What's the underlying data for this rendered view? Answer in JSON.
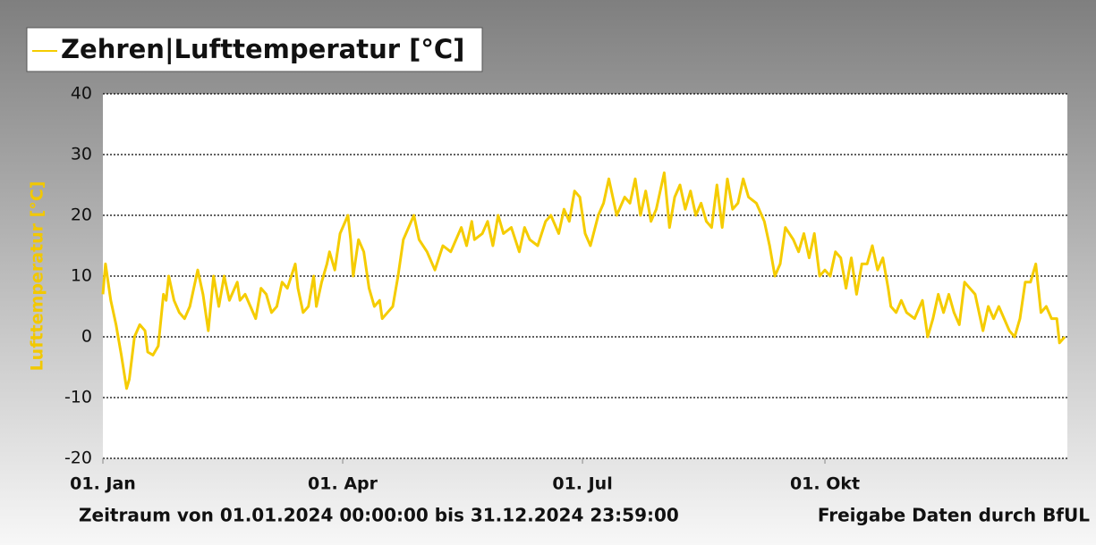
{
  "chart_data": {
    "type": "line",
    "y_label": "Lufttemperatur [°C]",
    "footer_left": "Zeitraum von 01.01.2024 00:00:00 bis 31.12.2024 23:59:00",
    "footer_right": "Freigabe Daten durch BfUL",
    "x": [
      0,
      1,
      3,
      5,
      7,
      9,
      10,
      12,
      14,
      16,
      17,
      19,
      21,
      23,
      24,
      25,
      27,
      29,
      31,
      33,
      36,
      38,
      40,
      42,
      44,
      46,
      48,
      49,
      51,
      52,
      54,
      56,
      58,
      60,
      62,
      64,
      66,
      68,
      70,
      73,
      74,
      76,
      78,
      80,
      81,
      83,
      85,
      86,
      88,
      90,
      93,
      94,
      95,
      97,
      99,
      101,
      103,
      105,
      106,
      108,
      110,
      112,
      114,
      116,
      118,
      120,
      123,
      126,
      129,
      132,
      136,
      138,
      140,
      141,
      144,
      146,
      148,
      150,
      152,
      155,
      158,
      160,
      162,
      165,
      168,
      170,
      173,
      175,
      177,
      179,
      181,
      183,
      185,
      188,
      190,
      192,
      195,
      198,
      200,
      202,
      204,
      206,
      208,
      210,
      213,
      215,
      217,
      219,
      221,
      223,
      225,
      227,
      229,
      231,
      233,
      235,
      237,
      239,
      241,
      243,
      245,
      248,
      251,
      253,
      255,
      257,
      259,
      262,
      264,
      266,
      268,
      270,
      272,
      274,
      276,
      278,
      280,
      282,
      284,
      286,
      288,
      290,
      292,
      294,
      296,
      298,
      299,
      301,
      303,
      305,
      308,
      311,
      313,
      315,
      317,
      319,
      321,
      323,
      325,
      327,
      329,
      331,
      334,
      336,
      338,
      340,
      342,
      344,
      346,
      348,
      350,
      351,
      352,
      354,
      356,
      358,
      360,
      362,
      363,
      365
    ],
    "series": [
      {
        "name": "Zehren|Lufttemperatur [°C]",
        "color": "#f5cc00",
        "values": [
          7,
          12,
          6,
          2,
          -3,
          -8.5,
          -7,
          0,
          2,
          1,
          -2.5,
          -3,
          -1.5,
          7,
          6,
          10,
          6,
          4,
          3,
          5,
          11,
          7,
          1,
          10,
          5,
          10,
          6,
          7,
          9,
          6,
          7,
          5,
          3,
          8,
          7,
          4,
          5,
          9,
          8,
          12,
          8,
          4,
          5,
          10,
          5,
          9,
          12,
          14,
          11,
          17,
          20,
          16,
          10,
          16,
          14,
          8,
          5,
          6,
          3,
          4,
          5,
          10,
          16,
          18,
          20,
          16,
          14,
          11,
          15,
          14,
          18,
          15,
          19,
          16,
          17,
          19,
          15,
          20,
          17,
          18,
          14,
          18,
          16,
          15,
          19,
          20,
          17,
          21,
          19,
          24,
          23,
          17,
          15,
          20,
          22,
          26,
          20,
          23,
          22,
          26,
          20,
          24,
          19,
          21,
          27,
          18,
          23,
          25,
          21,
          24,
          20,
          22,
          19,
          18,
          25,
          18,
          26,
          21,
          22,
          26,
          23,
          22,
          19,
          15,
          10,
          12,
          18,
          16,
          14,
          17,
          13,
          17,
          10,
          11,
          10,
          14,
          13,
          8,
          13,
          7,
          12,
          12,
          15,
          11,
          13,
          8,
          5,
          4,
          6,
          4,
          3,
          6,
          0,
          3,
          7,
          4,
          7,
          4,
          2,
          9,
          8,
          7,
          1,
          5,
          3,
          5,
          3,
          1,
          0,
          3,
          9,
          9,
          9,
          12,
          4,
          5,
          3,
          3,
          -1,
          0
        ]
      }
    ],
    "xlim": [
      0,
      366
    ],
    "xticks": [
      {
        "value": 0,
        "label": "01. Jan"
      },
      {
        "value": 91,
        "label": "01. Apr"
      },
      {
        "value": 182,
        "label": "01. Jul"
      },
      {
        "value": 274,
        "label": "01. Okt"
      }
    ],
    "ylim": [
      -20,
      40
    ],
    "yticks": [
      -20,
      -10,
      0,
      10,
      20,
      30,
      40
    ],
    "grid": true
  }
}
